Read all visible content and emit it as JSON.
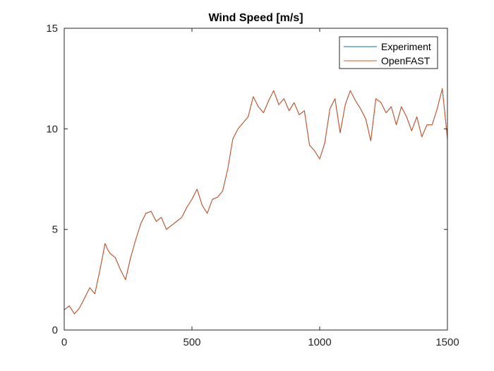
{
  "chart_data": {
    "type": "line",
    "title": "Wind Speed [m/s]",
    "xlabel": "",
    "ylabel": "",
    "xlim": [
      0,
      1500
    ],
    "ylim": [
      0,
      15
    ],
    "xticks": [
      0,
      500,
      1000,
      1500
    ],
    "yticks": [
      0,
      5,
      10,
      15
    ],
    "grid": false,
    "legend": "top-right",
    "series": [
      {
        "name": "Experiment",
        "color": "#0072BD",
        "x": [
          0,
          20,
          40,
          60,
          80,
          100,
          120,
          140,
          160,
          170,
          180,
          200,
          220,
          240,
          260,
          280,
          300,
          320,
          340,
          360,
          380,
          400,
          420,
          440,
          460,
          480,
          500,
          520,
          540,
          560,
          580,
          600,
          620,
          640,
          660,
          680,
          700,
          720,
          740,
          760,
          780,
          800,
          820,
          840,
          860,
          880,
          900,
          920,
          940,
          960,
          980,
          1000,
          1020,
          1040,
          1060,
          1080,
          1100,
          1120,
          1140,
          1160,
          1180,
          1200,
          1220,
          1240,
          1260,
          1280,
          1300,
          1320,
          1340,
          1360,
          1380,
          1400,
          1420,
          1440,
          1460,
          1480,
          1500
        ],
        "y": [
          1.0,
          1.2,
          0.8,
          1.1,
          1.6,
          2.1,
          1.8,
          3.0,
          4.3,
          4.0,
          3.8,
          3.6,
          3.0,
          2.5,
          3.6,
          4.5,
          5.3,
          5.8,
          5.9,
          5.4,
          5.6,
          5.0,
          5.2,
          5.4,
          5.6,
          6.1,
          6.5,
          7.0,
          6.2,
          5.8,
          6.5,
          6.6,
          6.9,
          8.0,
          9.5,
          10.0,
          10.3,
          10.6,
          11.6,
          11.1,
          10.8,
          11.4,
          11.9,
          11.2,
          11.5,
          10.9,
          11.3,
          10.7,
          10.9,
          9.2,
          8.9,
          8.5,
          9.3,
          11.0,
          11.5,
          9.8,
          11.2,
          11.9,
          11.4,
          11.0,
          10.5,
          9.4,
          11.5,
          11.3,
          10.8,
          11.1,
          10.2,
          11.1,
          10.6,
          9.9,
          10.6,
          9.6,
          10.2,
          10.2,
          11.0,
          12.0,
          9.5
        ]
      },
      {
        "name": "OpenFAST",
        "color": "#D95319",
        "x": [
          0,
          20,
          40,
          60,
          80,
          100,
          120,
          140,
          160,
          170,
          180,
          200,
          220,
          240,
          260,
          280,
          300,
          320,
          340,
          360,
          380,
          400,
          420,
          440,
          460,
          480,
          500,
          520,
          540,
          560,
          580,
          600,
          620,
          640,
          660,
          680,
          700,
          720,
          740,
          760,
          780,
          800,
          820,
          840,
          860,
          880,
          900,
          920,
          940,
          960,
          980,
          1000,
          1020,
          1040,
          1060,
          1080,
          1100,
          1120,
          1140,
          1160,
          1180,
          1200,
          1220,
          1240,
          1260,
          1280,
          1300,
          1320,
          1340,
          1360,
          1380,
          1400,
          1420,
          1440,
          1460,
          1480,
          1500
        ],
        "y": [
          1.0,
          1.2,
          0.8,
          1.1,
          1.6,
          2.1,
          1.8,
          3.0,
          4.3,
          4.0,
          3.8,
          3.6,
          3.0,
          2.5,
          3.6,
          4.5,
          5.3,
          5.8,
          5.9,
          5.4,
          5.6,
          5.0,
          5.2,
          5.4,
          5.6,
          6.1,
          6.5,
          7.0,
          6.2,
          5.8,
          6.5,
          6.6,
          6.9,
          8.0,
          9.5,
          10.0,
          10.3,
          10.6,
          11.6,
          11.1,
          10.8,
          11.4,
          11.9,
          11.2,
          11.5,
          10.9,
          11.3,
          10.7,
          10.9,
          9.2,
          8.9,
          8.5,
          9.3,
          11.0,
          11.5,
          9.8,
          11.2,
          11.9,
          11.4,
          11.0,
          10.5,
          9.4,
          11.5,
          11.3,
          10.8,
          11.1,
          10.2,
          11.1,
          10.6,
          9.9,
          10.6,
          9.6,
          10.2,
          10.2,
          11.0,
          12.0,
          9.5
        ]
      }
    ]
  }
}
